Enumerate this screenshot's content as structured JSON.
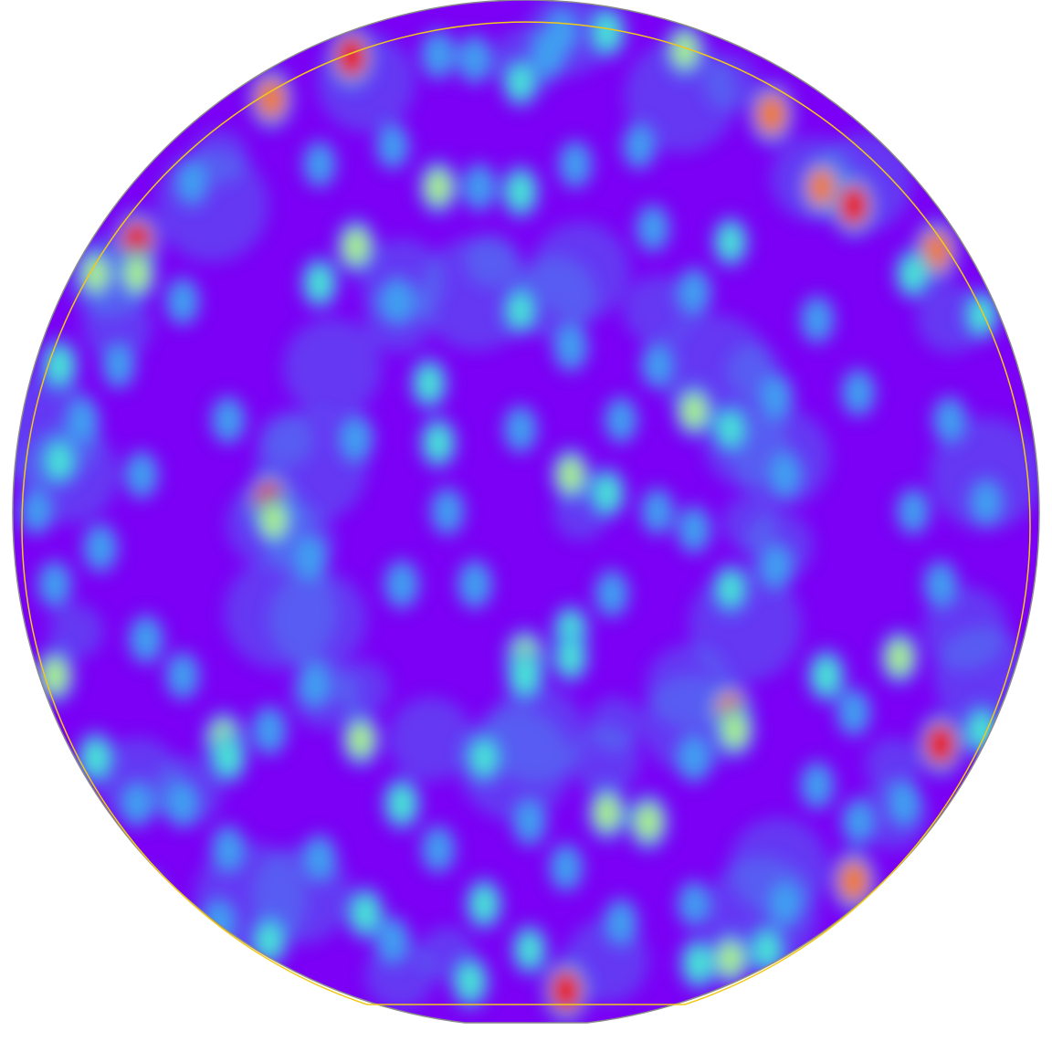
{
  "colors": {
    "page_background": "#ffffff",
    "wafer_base": "#7b00f5",
    "wafer_outline": "#8a8a8a",
    "inner_boundary": "#f2c81a",
    "scale_low": "#7b00f5",
    "scale_mid_low": "#3fa0f0",
    "scale_mid": "#49e6d3",
    "scale_mid_high": "#a8f08a",
    "scale_high": "#f07a2c",
    "scale_peak": "#e81a0c"
  },
  "heatmap": {
    "description_shape": "wafer",
    "spots": [
      [
        385,
        62,
        1.0
      ],
      [
        297,
        108,
        0.85
      ],
      [
        665,
        35,
        0.55
      ],
      [
        750,
        55,
        0.6
      ],
      [
        845,
        125,
        0.9
      ],
      [
        900,
        205,
        0.8
      ],
      [
        935,
        225,
        0.95
      ],
      [
        1025,
        275,
        0.9
      ],
      [
        1000,
        300,
        0.5
      ],
      [
        1075,
        345,
        0.45
      ],
      [
        150,
        265,
        0.95
      ],
      [
        150,
        300,
        0.6
      ],
      [
        105,
        300,
        0.6
      ],
      [
        65,
        400,
        0.55
      ],
      [
        65,
        505,
        0.5
      ],
      [
        295,
        550,
        0.95
      ],
      [
        300,
        570,
        0.6
      ],
      [
        60,
        740,
        0.65
      ],
      [
        105,
        830,
        0.55
      ],
      [
        1030,
        815,
        0.95
      ],
      [
        1075,
        800,
        0.55
      ],
      [
        935,
        965,
        0.9
      ],
      [
        800,
        780,
        0.85
      ],
      [
        805,
        800,
        0.6
      ],
      [
        620,
        1085,
        0.95
      ],
      [
        515,
        1075,
        0.55
      ],
      [
        800,
        1050,
        0.6
      ],
      [
        765,
        1055,
        0.55
      ],
      [
        840,
        1040,
        0.5
      ],
      [
        295,
        1030,
        0.5
      ],
      [
        480,
        205,
        0.6
      ],
      [
        570,
        210,
        0.55
      ],
      [
        525,
        205,
        0.35
      ],
      [
        390,
        270,
        0.65
      ],
      [
        350,
        310,
        0.5
      ],
      [
        435,
        330,
        0.4
      ],
      [
        470,
        420,
        0.5
      ],
      [
        480,
        485,
        0.5
      ],
      [
        570,
        340,
        0.45
      ],
      [
        625,
        380,
        0.4
      ],
      [
        625,
        520,
        0.6
      ],
      [
        665,
        540,
        0.5
      ],
      [
        715,
        250,
        0.35
      ],
      [
        800,
        265,
        0.45
      ],
      [
        760,
        320,
        0.4
      ],
      [
        760,
        450,
        0.6
      ],
      [
        800,
        470,
        0.45
      ],
      [
        850,
        435,
        0.35
      ],
      [
        895,
        350,
        0.35
      ],
      [
        940,
        430,
        0.35
      ],
      [
        575,
        720,
        0.7
      ],
      [
        575,
        740,
        0.55
      ],
      [
        625,
        690,
        0.45
      ],
      [
        625,
        720,
        0.45
      ],
      [
        440,
        880,
        0.55
      ],
      [
        395,
        810,
        0.6
      ],
      [
        245,
        810,
        0.7
      ],
      [
        250,
        830,
        0.5
      ],
      [
        295,
        800,
        0.4
      ],
      [
        345,
        750,
        0.35
      ],
      [
        665,
        890,
        0.65
      ],
      [
        710,
        900,
        0.7
      ],
      [
        760,
        830,
        0.4
      ],
      [
        800,
        645,
        0.45
      ],
      [
        850,
        620,
        0.35
      ],
      [
        905,
        740,
        0.55
      ],
      [
        985,
        720,
        0.6
      ],
      [
        935,
        780,
        0.35
      ],
      [
        160,
        700,
        0.4
      ],
      [
        200,
        740,
        0.35
      ],
      [
        110,
        600,
        0.4
      ],
      [
        155,
        520,
        0.35
      ],
      [
        200,
        330,
        0.35
      ],
      [
        210,
        200,
        0.3
      ],
      [
        250,
        460,
        0.35
      ],
      [
        340,
        610,
        0.35
      ],
      [
        390,
        480,
        0.4
      ],
      [
        440,
        640,
        0.4
      ],
      [
        520,
        640,
        0.4
      ],
      [
        490,
        560,
        0.35
      ],
      [
        570,
        470,
        0.35
      ],
      [
        670,
        650,
        0.35
      ],
      [
        720,
        560,
        0.3
      ],
      [
        760,
        580,
        0.35
      ],
      [
        860,
        520,
        0.35
      ],
      [
        990,
        880,
        0.35
      ],
      [
        895,
        860,
        0.35
      ],
      [
        940,
        900,
        0.3
      ],
      [
        860,
        990,
        0.35
      ],
      [
        760,
        990,
        0.3
      ],
      [
        400,
        1000,
        0.55
      ],
      [
        430,
        1030,
        0.35
      ],
      [
        480,
        930,
        0.35
      ],
      [
        530,
        830,
        0.5
      ],
      [
        530,
        990,
        0.5
      ],
      [
        580,
        1040,
        0.45
      ],
      [
        580,
        900,
        0.35
      ],
      [
        620,
        950,
        0.35
      ],
      [
        680,
        1010,
        0.35
      ],
      [
        350,
        940,
        0.35
      ],
      [
        250,
        930,
        0.35
      ],
      [
        200,
        880,
        0.35
      ],
      [
        150,
        880,
        0.3
      ],
      [
        240,
        1010,
        0.35
      ],
      [
        160,
        980,
        0.3
      ],
      [
        480,
        60,
        0.4
      ],
      [
        520,
        65,
        0.4
      ],
      [
        570,
        90,
        0.45
      ],
      [
        600,
        60,
        0.4
      ],
      [
        615,
        35,
        0.35
      ],
      [
        700,
        160,
        0.3
      ],
      [
        630,
        180,
        0.35
      ],
      [
        430,
        160,
        0.3
      ],
      [
        350,
        180,
        0.3
      ],
      [
        1040,
        460,
        0.35
      ],
      [
        1080,
        550,
        0.35
      ],
      [
        1030,
        640,
        0.35
      ],
      [
        1000,
        560,
        0.3
      ],
      [
        720,
        400,
        0.3
      ],
      [
        680,
        460,
        0.3
      ],
      [
        60,
        640,
        0.35
      ],
      [
        40,
        560,
        0.3
      ],
      [
        90,
        460,
        0.3
      ],
      [
        130,
        400,
        0.3
      ]
    ]
  }
}
